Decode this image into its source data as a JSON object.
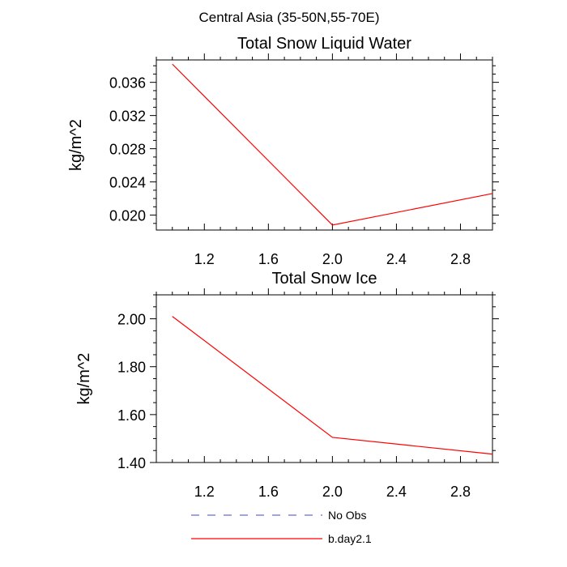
{
  "suptitle": "Central Asia (35-50N,55-70E)",
  "legend": {
    "placement": "bottom-center",
    "entries": [
      {
        "label": "No Obs",
        "color": "#6b6bd6",
        "dash": "dashed"
      },
      {
        "label": "b.day2.1",
        "color": "#ff0000",
        "dash": "solid"
      }
    ]
  },
  "chart_data": [
    {
      "type": "line",
      "title": "Total Snow Liquid Water",
      "xlabel": "",
      "ylabel": "kg/m^2",
      "xlim": [
        0.9,
        3.0
      ],
      "ylim": [
        0.0182,
        0.0387
      ],
      "xticks": [
        "1.2",
        "1.6",
        "2.0",
        "2.4",
        "2.8"
      ],
      "xtick_values": [
        1.2,
        1.6,
        2.0,
        2.4,
        2.8
      ],
      "yticks": [
        "0.020",
        "0.024",
        "0.028",
        "0.032",
        "0.036"
      ],
      "ytick_values": [
        0.02,
        0.024,
        0.028,
        0.032,
        0.036
      ],
      "grid": false,
      "series": [
        {
          "name": "b.day2.1",
          "color": "#ff0000",
          "x": [
            1.0,
            2.0,
            3.0
          ],
          "y": [
            0.0382,
            0.0188,
            0.0226
          ]
        }
      ]
    },
    {
      "type": "line",
      "title": "Total Snow Ice",
      "xlabel": "",
      "ylabel": "kg/m^2",
      "xlim": [
        0.9,
        3.0
      ],
      "ylim": [
        1.4,
        2.1
      ],
      "xticks": [
        "1.2",
        "1.6",
        "2.0",
        "2.4",
        "2.8"
      ],
      "xtick_values": [
        1.2,
        1.6,
        2.0,
        2.4,
        2.8
      ],
      "yticks": [
        "1.40",
        "1.60",
        "1.80",
        "2.00"
      ],
      "ytick_values": [
        1.4,
        1.6,
        1.8,
        2.0
      ],
      "grid": false,
      "series": [
        {
          "name": "b.day2.1",
          "color": "#ff0000",
          "x": [
            1.0,
            2.0,
            3.0
          ],
          "y": [
            2.01,
            1.505,
            1.435
          ]
        }
      ]
    }
  ]
}
